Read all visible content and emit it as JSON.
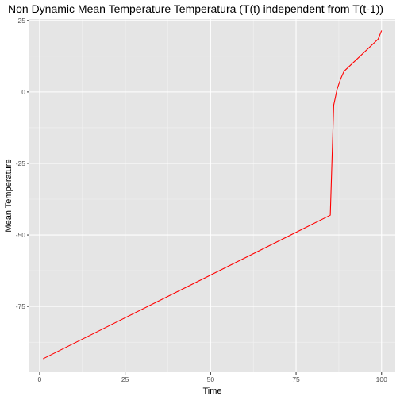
{
  "chart_data": {
    "type": "line",
    "title": "Non Dynamic Mean Temperature Temperatura (T(t) independent from T(t-1))",
    "xlabel": "Time",
    "ylabel": "Mean Temperature",
    "xlim": [
      -3,
      104
    ],
    "ylim": [
      -98,
      25.5
    ],
    "x_ticks": [
      0,
      25,
      50,
      75,
      100
    ],
    "y_ticks": [
      -75,
      -50,
      -25,
      0,
      25
    ],
    "grid": true,
    "background": "#e5e5e5",
    "series": [
      {
        "color": "#ff0000",
        "points": [
          [
            1,
            -93.3
          ],
          [
            85,
            -43.1
          ],
          [
            86,
            -4.6
          ],
          [
            87,
            1.0
          ],
          [
            88,
            4.5
          ],
          [
            89,
            7.2
          ],
          [
            99,
            18.5
          ],
          [
            100,
            21.5
          ]
        ]
      }
    ]
  }
}
